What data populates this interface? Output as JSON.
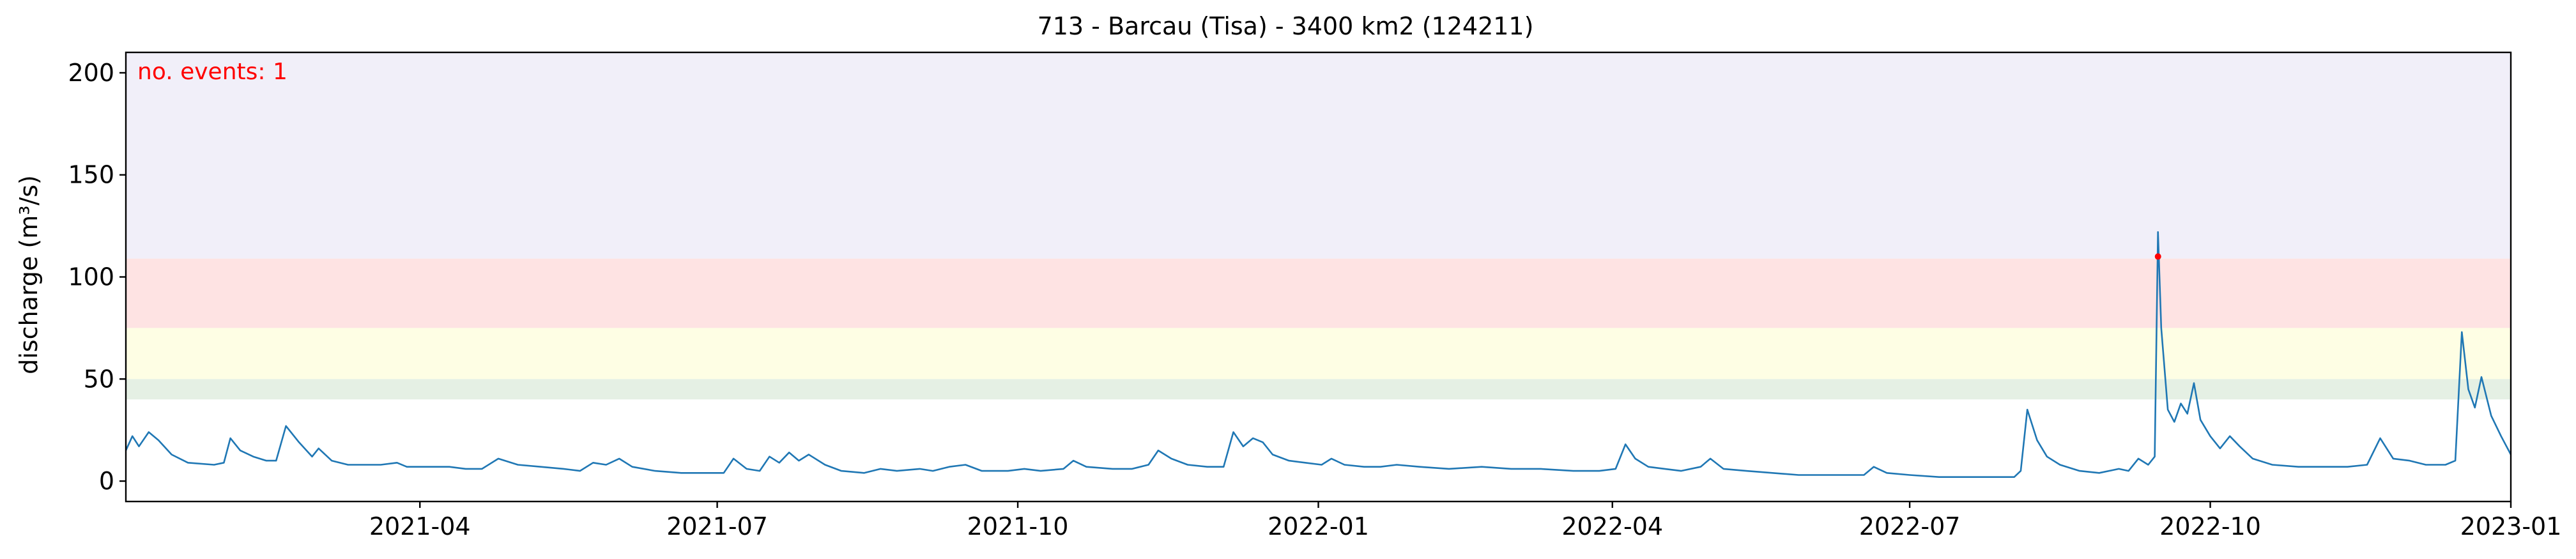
{
  "chart_data": {
    "type": "line",
    "title": "713 - Barcau (Tisa) - 3400 km2 (124211)",
    "xlabel": "",
    "ylabel": "discharge (m³/s)",
    "annotation": "no. events: 1",
    "xlim": [
      "2021-01-01",
      "2023-01-01"
    ],
    "ylim": [
      -10,
      210
    ],
    "xticks": [
      {
        "date": "2021-04-01",
        "label": "2021-04"
      },
      {
        "date": "2021-07-01",
        "label": "2021-07"
      },
      {
        "date": "2021-10-01",
        "label": "2021-10"
      },
      {
        "date": "2022-01-01",
        "label": "2022-01"
      },
      {
        "date": "2022-04-01",
        "label": "2022-04"
      },
      {
        "date": "2022-07-01",
        "label": "2022-07"
      },
      {
        "date": "2022-10-01",
        "label": "2022-10"
      },
      {
        "date": "2023-01-01",
        "label": "2023-01"
      }
    ],
    "yticks": [
      0,
      50,
      100,
      150,
      200
    ],
    "grid": false,
    "threshold_bands": [
      {
        "from": 40,
        "to": 50,
        "color": "#e5f0e4"
      },
      {
        "from": 50,
        "to": 75,
        "color": "#fefee4"
      },
      {
        "from": 75,
        "to": 109,
        "color": "#fee3e3"
      },
      {
        "from": 109,
        "to": 210,
        "color": "#f1eff9"
      }
    ],
    "series": [
      {
        "color": "#1f77b4",
        "points": [
          [
            "2021-01-01",
            15
          ],
          [
            "2021-01-03",
            22
          ],
          [
            "2021-01-05",
            17
          ],
          [
            "2021-01-08",
            24
          ],
          [
            "2021-01-11",
            20
          ],
          [
            "2021-01-15",
            13
          ],
          [
            "2021-01-20",
            9
          ],
          [
            "2021-01-28",
            8
          ],
          [
            "2021-01-31",
            9
          ],
          [
            "2021-02-02",
            21
          ],
          [
            "2021-02-05",
            15
          ],
          [
            "2021-02-09",
            12
          ],
          [
            "2021-02-13",
            10
          ],
          [
            "2021-02-16",
            10
          ],
          [
            "2021-02-19",
            27
          ],
          [
            "2021-02-23",
            19
          ],
          [
            "2021-02-27",
            12
          ],
          [
            "2021-03-01",
            16
          ],
          [
            "2021-03-05",
            10
          ],
          [
            "2021-03-10",
            8
          ],
          [
            "2021-03-20",
            8
          ],
          [
            "2021-03-25",
            9
          ],
          [
            "2021-03-28",
            7
          ],
          [
            "2021-04-05",
            7
          ],
          [
            "2021-04-10",
            7
          ],
          [
            "2021-04-15",
            6
          ],
          [
            "2021-04-20",
            6
          ],
          [
            "2021-04-25",
            11
          ],
          [
            "2021-05-01",
            8
          ],
          [
            "2021-05-08",
            7
          ],
          [
            "2021-05-15",
            6
          ],
          [
            "2021-05-20",
            5
          ],
          [
            "2021-05-24",
            9
          ],
          [
            "2021-05-28",
            8
          ],
          [
            "2021-06-01",
            11
          ],
          [
            "2021-06-05",
            7
          ],
          [
            "2021-06-12",
            5
          ],
          [
            "2021-06-20",
            4
          ],
          [
            "2021-06-28",
            4
          ],
          [
            "2021-07-03",
            4
          ],
          [
            "2021-07-06",
            11
          ],
          [
            "2021-07-10",
            6
          ],
          [
            "2021-07-14",
            5
          ],
          [
            "2021-07-17",
            12
          ],
          [
            "2021-07-20",
            9
          ],
          [
            "2021-07-23",
            14
          ],
          [
            "2021-07-26",
            10
          ],
          [
            "2021-07-29",
            13
          ],
          [
            "2021-08-03",
            8
          ],
          [
            "2021-08-08",
            5
          ],
          [
            "2021-08-15",
            4
          ],
          [
            "2021-08-20",
            6
          ],
          [
            "2021-08-25",
            5
          ],
          [
            "2021-09-01",
            6
          ],
          [
            "2021-09-05",
            5
          ],
          [
            "2021-09-10",
            7
          ],
          [
            "2021-09-15",
            8
          ],
          [
            "2021-09-20",
            5
          ],
          [
            "2021-09-28",
            5
          ],
          [
            "2021-10-03",
            6
          ],
          [
            "2021-10-08",
            5
          ],
          [
            "2021-10-15",
            6
          ],
          [
            "2021-10-18",
            10
          ],
          [
            "2021-10-22",
            7
          ],
          [
            "2021-10-30",
            6
          ],
          [
            "2021-11-05",
            6
          ],
          [
            "2021-11-10",
            8
          ],
          [
            "2021-11-13",
            15
          ],
          [
            "2021-11-17",
            11
          ],
          [
            "2021-11-22",
            8
          ],
          [
            "2021-11-28",
            7
          ],
          [
            "2021-12-03",
            7
          ],
          [
            "2021-12-06",
            24
          ],
          [
            "2021-12-09",
            17
          ],
          [
            "2021-12-12",
            21
          ],
          [
            "2021-12-15",
            19
          ],
          [
            "2021-12-18",
            13
          ],
          [
            "2021-12-23",
            10
          ],
          [
            "2021-12-28",
            9
          ],
          [
            "2022-01-02",
            8
          ],
          [
            "2022-01-05",
            11
          ],
          [
            "2022-01-09",
            8
          ],
          [
            "2022-01-15",
            7
          ],
          [
            "2022-01-20",
            7
          ],
          [
            "2022-01-25",
            8
          ],
          [
            "2022-02-01",
            7
          ],
          [
            "2022-02-10",
            6
          ],
          [
            "2022-02-20",
            7
          ],
          [
            "2022-03-01",
            6
          ],
          [
            "2022-03-10",
            6
          ],
          [
            "2022-03-20",
            5
          ],
          [
            "2022-03-28",
            5
          ],
          [
            "2022-04-02",
            6
          ],
          [
            "2022-04-05",
            18
          ],
          [
            "2022-04-08",
            11
          ],
          [
            "2022-04-12",
            7
          ],
          [
            "2022-04-17",
            6
          ],
          [
            "2022-04-22",
            5
          ],
          [
            "2022-04-28",
            7
          ],
          [
            "2022-05-01",
            11
          ],
          [
            "2022-05-05",
            6
          ],
          [
            "2022-05-12",
            5
          ],
          [
            "2022-05-20",
            4
          ],
          [
            "2022-05-28",
            3
          ],
          [
            "2022-06-05",
            3
          ],
          [
            "2022-06-12",
            3
          ],
          [
            "2022-06-17",
            3
          ],
          [
            "2022-06-20",
            7
          ],
          [
            "2022-06-24",
            4
          ],
          [
            "2022-07-01",
            3
          ],
          [
            "2022-07-10",
            2
          ],
          [
            "2022-07-20",
            2
          ],
          [
            "2022-07-28",
            2
          ],
          [
            "2022-08-02",
            2
          ],
          [
            "2022-08-04",
            5
          ],
          [
            "2022-08-06",
            35
          ],
          [
            "2022-08-09",
            20
          ],
          [
            "2022-08-12",
            12
          ],
          [
            "2022-08-16",
            8
          ],
          [
            "2022-08-22",
            5
          ],
          [
            "2022-08-28",
            4
          ],
          [
            "2022-09-03",
            6
          ],
          [
            "2022-09-06",
            5
          ],
          [
            "2022-09-09",
            11
          ],
          [
            "2022-09-12",
            8
          ],
          [
            "2022-09-14",
            12
          ],
          [
            "2022-09-15",
            122
          ],
          [
            "2022-09-16",
            75
          ],
          [
            "2022-09-18",
            35
          ],
          [
            "2022-09-20",
            29
          ],
          [
            "2022-09-22",
            38
          ],
          [
            "2022-09-24",
            33
          ],
          [
            "2022-09-26",
            48
          ],
          [
            "2022-09-28",
            30
          ],
          [
            "2022-10-01",
            22
          ],
          [
            "2022-10-04",
            16
          ],
          [
            "2022-10-07",
            22
          ],
          [
            "2022-10-10",
            17
          ],
          [
            "2022-10-14",
            11
          ],
          [
            "2022-10-20",
            8
          ],
          [
            "2022-10-28",
            7
          ],
          [
            "2022-11-05",
            7
          ],
          [
            "2022-11-12",
            7
          ],
          [
            "2022-11-18",
            8
          ],
          [
            "2022-11-22",
            21
          ],
          [
            "2022-11-26",
            11
          ],
          [
            "2022-12-01",
            10
          ],
          [
            "2022-12-06",
            8
          ],
          [
            "2022-12-12",
            8
          ],
          [
            "2022-12-15",
            10
          ],
          [
            "2022-12-17",
            73
          ],
          [
            "2022-12-19",
            45
          ],
          [
            "2022-12-21",
            36
          ],
          [
            "2022-12-23",
            51
          ],
          [
            "2022-12-26",
            32
          ],
          [
            "2022-12-29",
            22
          ],
          [
            "2023-01-01",
            13
          ]
        ]
      }
    ],
    "events": [
      {
        "date": "2022-09-15",
        "value": 110,
        "color": "#ff0000"
      }
    ]
  }
}
